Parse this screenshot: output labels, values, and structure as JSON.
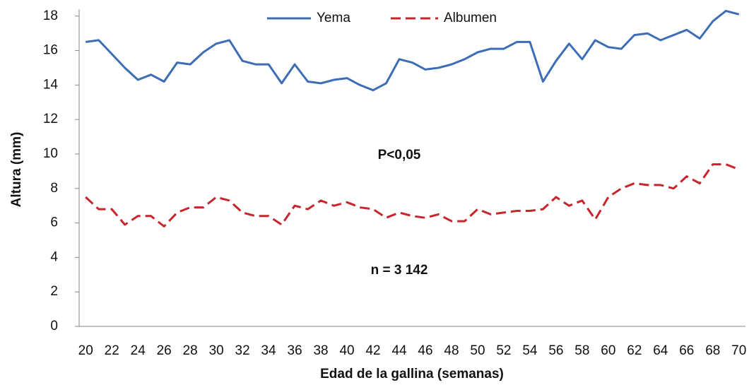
{
  "chart_data": {
    "type": "line",
    "x_label": "Edad de la gallina (semanas)",
    "y_label": "Altura  (mm)",
    "annotations": [
      "P<0,05",
      "n = 3 142"
    ],
    "categories": [
      "20",
      null,
      "22",
      null,
      "24",
      null,
      "26",
      null,
      "28",
      null,
      "30",
      null,
      "32",
      null,
      "34",
      null,
      "36",
      null,
      "38",
      null,
      "40",
      null,
      "42",
      null,
      "44",
      null,
      "46",
      null,
      "48",
      null,
      "50",
      null,
      "52",
      null,
      "54",
      null,
      "56",
      null,
      "58",
      null,
      "60",
      null,
      "62",
      null,
      "64",
      null,
      "66",
      null,
      "68",
      null,
      "70"
    ],
    "series": [
      {
        "name": "Yema",
        "color": "#3c6db5",
        "dash": false,
        "values": [
          16.5,
          16.6,
          15.8,
          15.0,
          14.3,
          14.6,
          14.2,
          15.3,
          15.2,
          15.9,
          16.4,
          16.6,
          15.4,
          15.2,
          15.2,
          14.1,
          15.2,
          14.2,
          14.1,
          14.3,
          14.4,
          14.0,
          13.7,
          14.1,
          15.5,
          15.3,
          14.9,
          15.0,
          15.2,
          15.5,
          15.9,
          16.1,
          16.1,
          16.5,
          16.5,
          14.2,
          15.4,
          16.4,
          15.5,
          16.6,
          16.2,
          16.1,
          16.9,
          17.0,
          16.6,
          16.9,
          17.2,
          16.7,
          17.7,
          18.3,
          18.1
        ]
      },
      {
        "name": "Albumen",
        "color": "#c8252c",
        "dash": true,
        "values": [
          7.5,
          6.8,
          6.8,
          5.9,
          6.4,
          6.4,
          5.8,
          6.6,
          6.9,
          6.9,
          7.5,
          7.3,
          6.6,
          6.4,
          6.4,
          5.9,
          7.0,
          6.8,
          7.3,
          7.0,
          7.2,
          6.9,
          6.8,
          6.3,
          6.6,
          6.4,
          6.3,
          6.5,
          6.1,
          6.1,
          6.8,
          6.5,
          6.6,
          6.7,
          6.7,
          6.8,
          7.5,
          7.0,
          7.3,
          6.2,
          7.5,
          8.0,
          8.3,
          8.2,
          8.2,
          8.0,
          8.7,
          8.3,
          9.4,
          9.4,
          9.1
        ]
      }
    ],
    "ylim": [
      0,
      18.4
    ],
    "yticks": [
      0,
      2,
      4,
      6,
      8,
      10,
      12,
      14,
      16,
      18
    ],
    "grid": false,
    "legend": "top"
  }
}
